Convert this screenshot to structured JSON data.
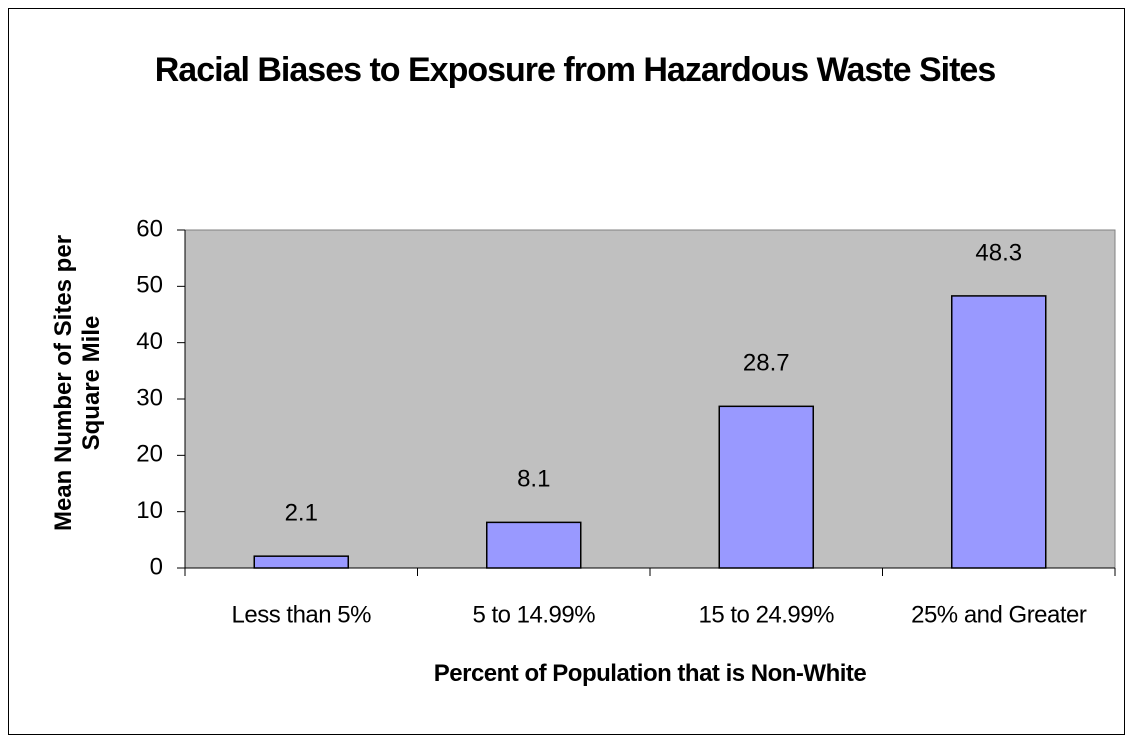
{
  "chart_data": {
    "type": "bar",
    "title": "Racial Biases to Exposure from Hazardous Waste Sites",
    "x_label": "Percent of Population that is Non-White",
    "y_label": "Mean Number of Sites per Square Mile",
    "categories": [
      "Less than 5%",
      "5 to 14.99%",
      "15 to 24.99%",
      "25% and Greater"
    ],
    "values": [
      2.1,
      8.1,
      28.7,
      48.3
    ],
    "color": "#9999ff",
    "plot_background": "#c0c0c0",
    "ylim": [
      0,
      60
    ],
    "yticks": [
      0,
      10,
      20,
      30,
      40,
      50,
      60
    ],
    "grid": false
  }
}
